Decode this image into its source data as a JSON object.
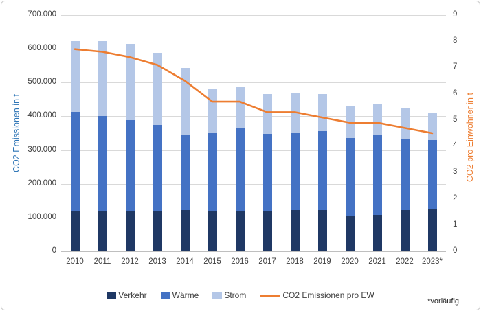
{
  "chart_data": {
    "type": "bar",
    "subtype": "stacked-bars-with-line",
    "categories": [
      "2010",
      "2011",
      "2012",
      "2013",
      "2014",
      "2015",
      "2016",
      "2017",
      "2018",
      "2019",
      "2020",
      "2021",
      "2022",
      "2023*"
    ],
    "series": [
      {
        "name": "Verkehr",
        "kind": "bar",
        "color": "#1f3864",
        "values": [
          120000,
          121000,
          120000,
          121000,
          123000,
          120000,
          120000,
          118000,
          122000,
          123000,
          105000,
          107000,
          123000,
          124000
        ]
      },
      {
        "name": "Wärme",
        "kind": "bar",
        "color": "#4472c4",
        "values": [
          294000,
          279000,
          269000,
          254000,
          221000,
          233000,
          245000,
          229000,
          228000,
          233000,
          231000,
          237000,
          210000,
          206000
        ]
      },
      {
        "name": "Strom",
        "kind": "bar",
        "color": "#b4c7e7",
        "values": [
          210000,
          222000,
          226000,
          213000,
          200000,
          129000,
          123000,
          120000,
          121000,
          110000,
          95000,
          94000,
          90000,
          82000
        ]
      },
      {
        "name": "CO2 Emissionen pro EW",
        "kind": "line",
        "color": "#ed7d31",
        "axis": "right",
        "values": [
          7.7,
          7.6,
          7.4,
          7.1,
          6.5,
          5.7,
          5.7,
          5.3,
          5.3,
          5.1,
          4.9,
          4.9,
          4.7,
          4.5
        ]
      }
    ],
    "left_axis": {
      "label": "CO2 Emissionen in t",
      "min": 0,
      "max": 700000,
      "step": 100000,
      "tick_labels": [
        "0",
        "100.000",
        "200.000",
        "300.000",
        "400.000",
        "500.000",
        "600.000",
        "700.000"
      ]
    },
    "right_axis": {
      "label": "CO2  pro Einwohner in t",
      "min": 0,
      "max": 9,
      "step": 1,
      "tick_labels": [
        "0",
        "1",
        "2",
        "3",
        "4",
        "5",
        "6",
        "7",
        "8",
        "9"
      ]
    },
    "legend_position": "bottom",
    "grid": true,
    "footnote": "*vorläufig"
  },
  "colors": {
    "grid": "#d9d9d9",
    "axis_base": "#bfbfbf",
    "tick_text": "#404040",
    "left_axis_title": "#2e75b6",
    "right_axis_title": "#ed7d31"
  }
}
